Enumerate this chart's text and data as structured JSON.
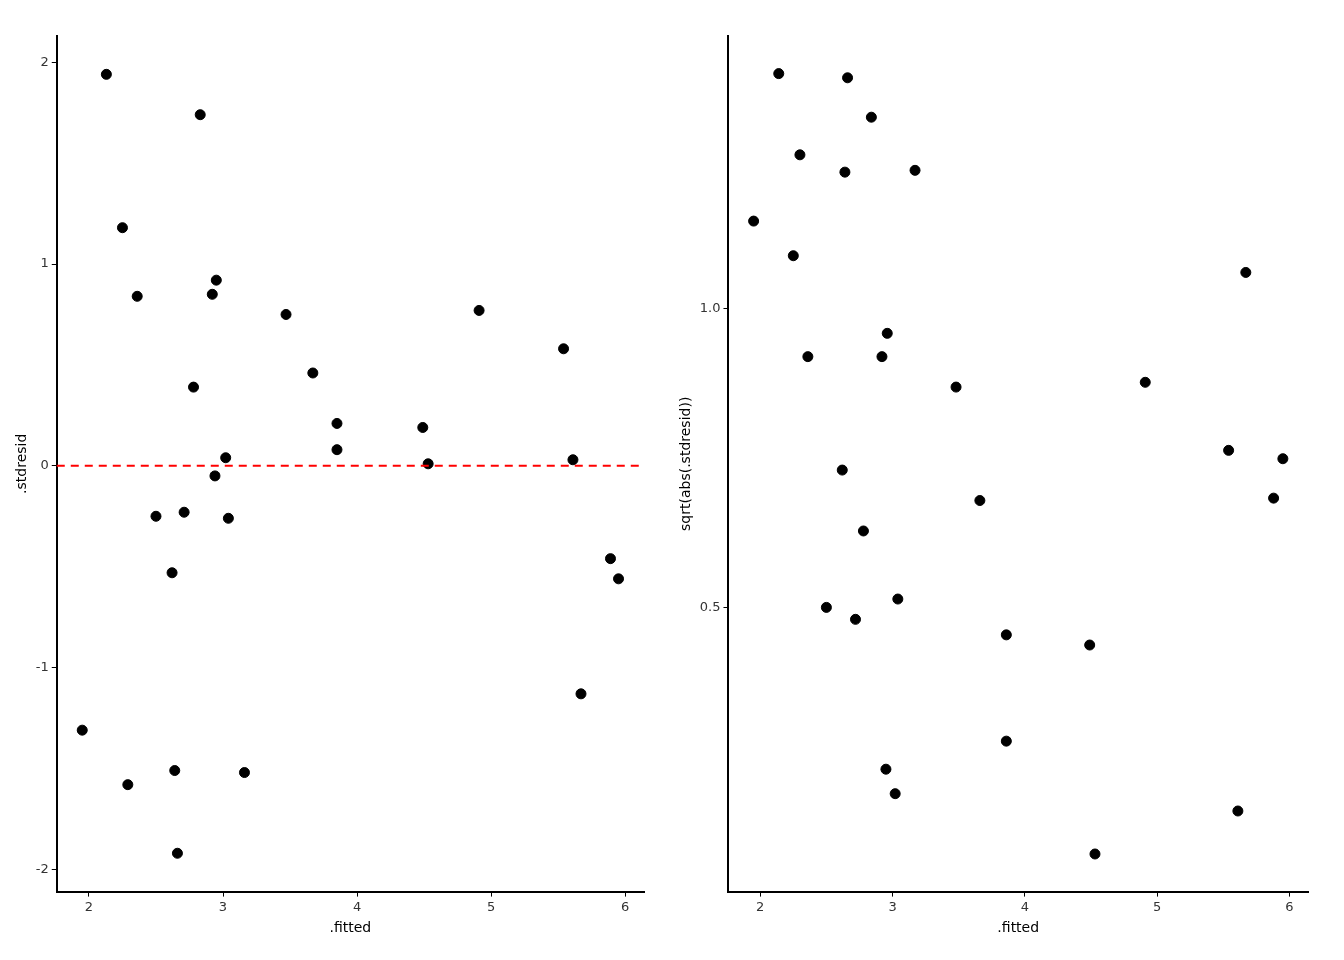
{
  "chart_data": [
    {
      "type": "scatter",
      "xlabel": ".fitted",
      "ylabel": ".stdresid",
      "xlim": [
        1.76,
        6.14
      ],
      "ylim": [
        -2.11,
        2.13
      ],
      "xticks": [
        2,
        3,
        4,
        5,
        6
      ],
      "yticks": [
        -2,
        -1,
        0,
        1,
        2
      ],
      "grid": false,
      "marker": "circle",
      "ref_lines": [
        {
          "axis": "y",
          "value": 0,
          "color": "#ff0000",
          "line_style": "dashed"
        }
      ],
      "series": [
        {
          "color": "#000000",
          "x": [
            2.13,
            2.83,
            2.25,
            2.36,
            2.95,
            2.92,
            3.47,
            4.91,
            5.54,
            3.67,
            2.78,
            3.85,
            4.49,
            3.85,
            3.02,
            4.53,
            5.61,
            2.94,
            2.5,
            2.71,
            3.04,
            2.62,
            5.89,
            5.95,
            5.67,
            1.95,
            2.29,
            2.64,
            3.16,
            2.66
          ],
          "values": [
            1.94,
            1.74,
            1.18,
            0.84,
            0.92,
            0.85,
            0.75,
            0.77,
            0.58,
            0.46,
            0.39,
            0.21,
            0.19,
            0.08,
            0.04,
            0.01,
            0.03,
            -0.05,
            -0.25,
            -0.23,
            -0.26,
            -0.53,
            -0.46,
            -0.56,
            -1.13,
            -1.31,
            -1.58,
            -1.51,
            -1.52,
            -1.92
          ]
        }
      ]
    },
    {
      "type": "scatter",
      "xlabel": ".fitted",
      "ylabel": "sqrt(abs(.stdresid))",
      "xlim": [
        1.76,
        6.14
      ],
      "ylim": [
        0.024,
        1.457
      ],
      "xticks": [
        2,
        3,
        4,
        5,
        6
      ],
      "yticks": [
        {
          "value": 0.5,
          "label": "0.5"
        },
        {
          "value": 1,
          "label": "1.0"
        }
      ],
      "grid": false,
      "marker": "circle",
      "series": [
        {
          "color": "#000000",
          "x": [
            2.14,
            2.66,
            2.84,
            2.3,
            2.64,
            3.17,
            1.95,
            2.25,
            5.67,
            2.96,
            2.36,
            2.92,
            3.48,
            4.91,
            5.54,
            5.95,
            2.62,
            3.66,
            5.88,
            2.78,
            2.5,
            3.04,
            2.72,
            3.86,
            4.49,
            3.86,
            2.95,
            3.02,
            5.61,
            4.53
          ],
          "values": [
            1.394,
            1.387,
            1.321,
            1.258,
            1.229,
            1.232,
            1.147,
            1.089,
            1.061,
            0.959,
            0.92,
            0.92,
            0.869,
            0.877,
            0.763,
            0.749,
            0.73,
            0.679,
            0.683,
            0.628,
            0.5,
            0.514,
            0.48,
            0.454,
            0.437,
            0.276,
            0.229,
            0.188,
            0.159,
            0.087
          ]
        }
      ]
    }
  ]
}
